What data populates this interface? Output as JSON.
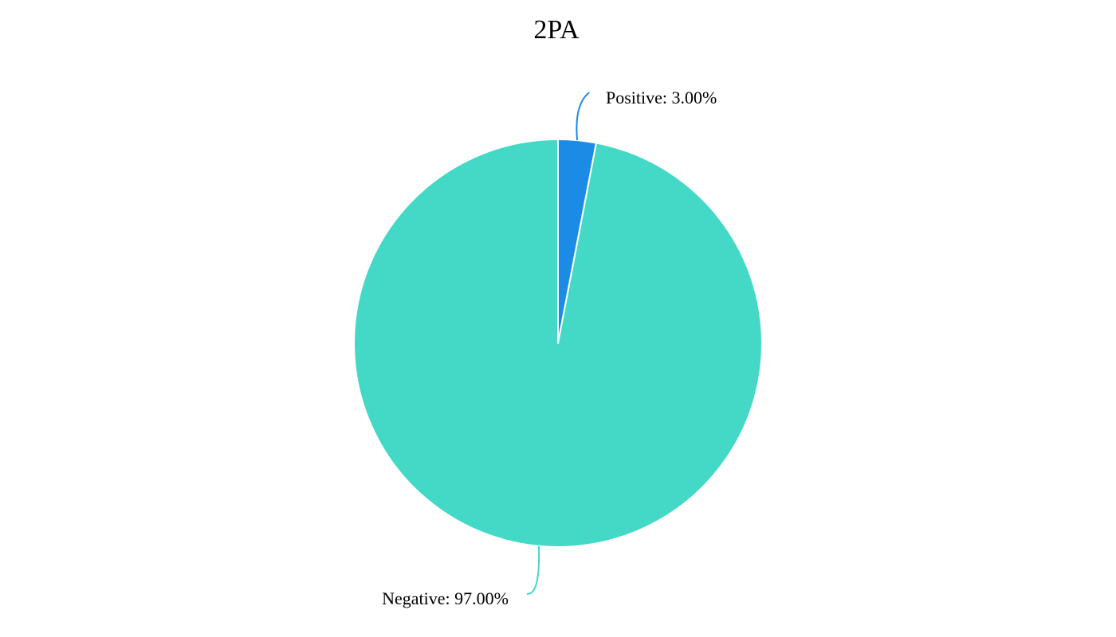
{
  "chart_data": {
    "type": "pie",
    "title": "2PA",
    "slices": [
      {
        "label": "Positive",
        "value": 3.0,
        "display": "Positive: 3.00%",
        "color": "#1c8be6"
      },
      {
        "label": "Negative",
        "value": 97.0,
        "display": "Negative: 97.00%",
        "color": "#43d9c6"
      }
    ],
    "start_angle": "12 o'clock, clockwise",
    "slice_border_color": "#ffffff",
    "legend": "none (labels with leader lines)"
  }
}
